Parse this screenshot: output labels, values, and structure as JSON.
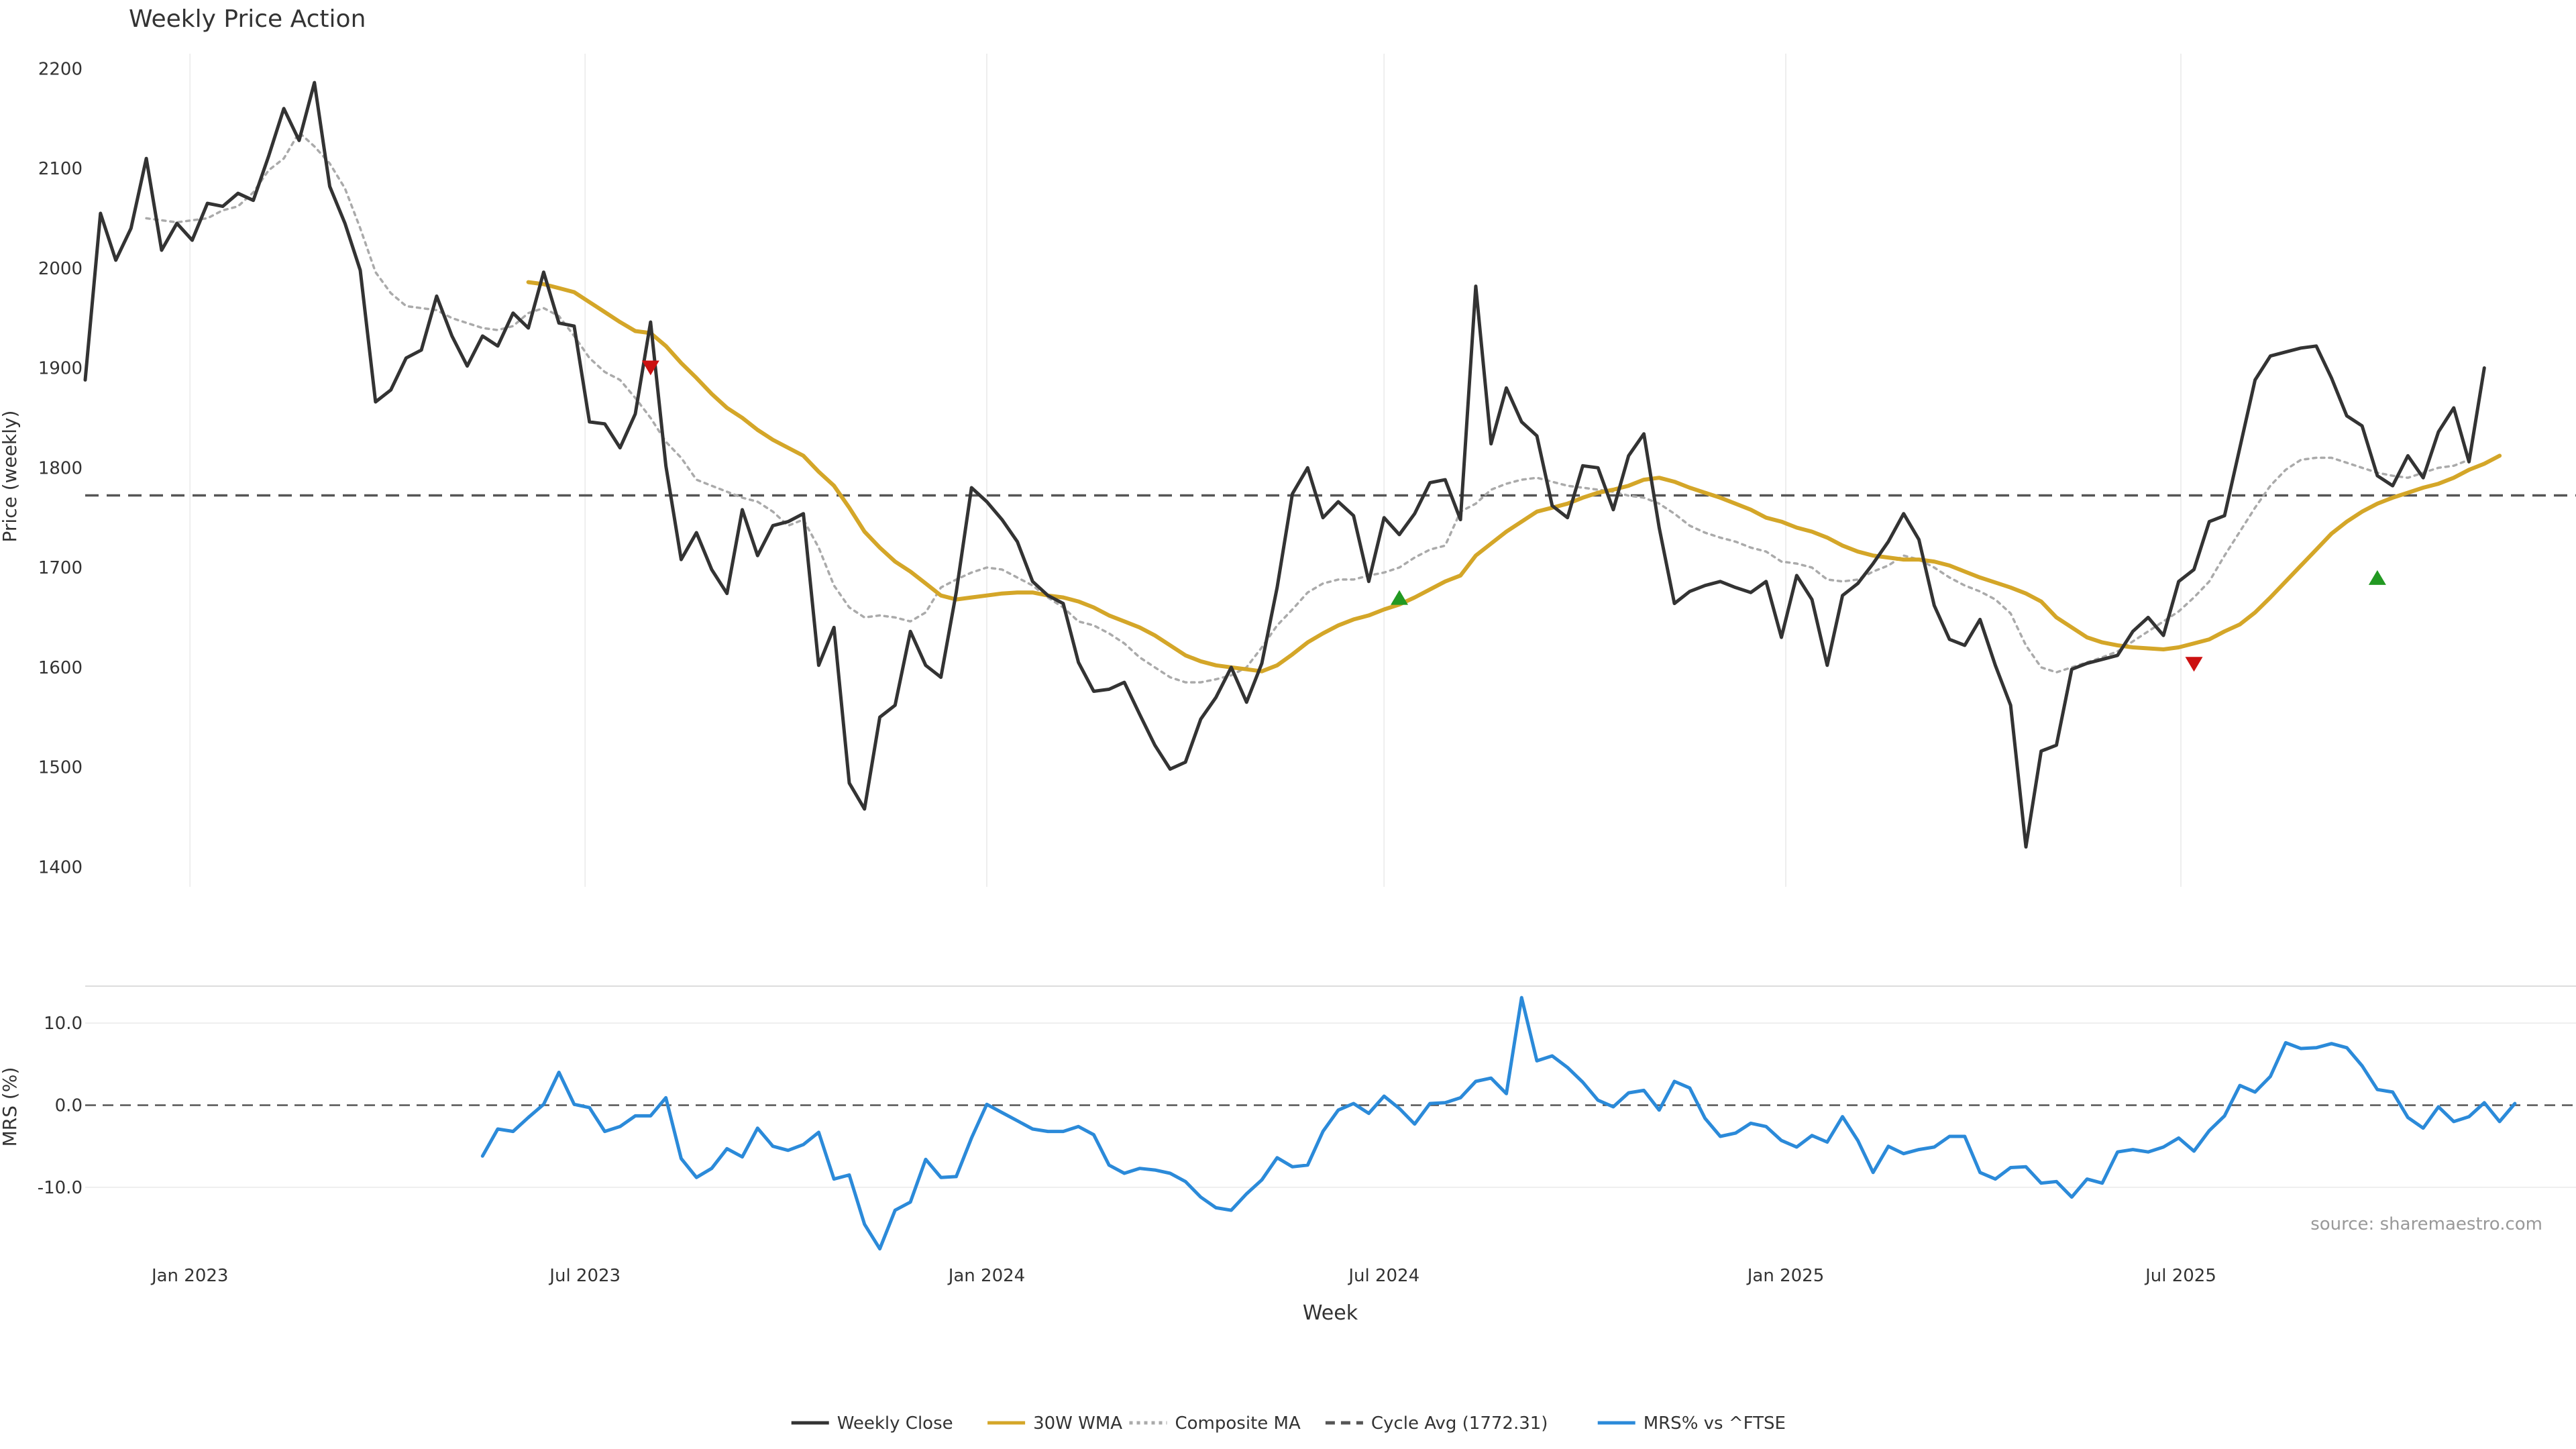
{
  "chart_data": {
    "type": "line",
    "title": "Weekly Price Action",
    "source": "source: sharemaestro.com",
    "xlabel": "Week",
    "x_start": "2022-11-14",
    "x_tick_labels": [
      {
        "label": "Jan 2023",
        "date": "2023-01-01"
      },
      {
        "label": "Jul 2023",
        "date": "2023-07-01"
      },
      {
        "label": "Jan 2024",
        "date": "2024-01-01"
      },
      {
        "label": "Jul 2024",
        "date": "2024-07-01"
      },
      {
        "label": "Jan 2025",
        "date": "2025-01-01"
      },
      {
        "label": "Jul 2025",
        "date": "2025-07-01"
      }
    ],
    "price_panel": {
      "ylabel": "Price (weekly)",
      "ylim": [
        1380,
        2215
      ],
      "yticks": [
        1400,
        1500,
        1600,
        1700,
        1800,
        1900,
        2000,
        2100,
        2200
      ],
      "series": [
        {
          "name": "Weekly Close",
          "color": "#333333",
          "style": "solid",
          "start_index": 0,
          "values": [
            1888,
            2055,
            2008,
            2040,
            2110,
            2018,
            2045,
            2028,
            2065,
            2062,
            2075,
            2068,
            2112,
            2160,
            2128,
            2186,
            2082,
            2045,
            1998,
            1866,
            1878,
            1910,
            1918,
            1972,
            1932,
            1902,
            1932,
            1922,
            1955,
            1940,
            1996,
            1945,
            1942,
            1846,
            1844,
            1820,
            1854,
            1946,
            1802,
            1708,
            1735,
            1698,
            1674,
            1758,
            1712,
            1742,
            1746,
            1754,
            1602,
            1640,
            1484,
            1458,
            1550,
            1562,
            1636,
            1602,
            1590,
            1675,
            1780,
            1766,
            1748,
            1726,
            1686,
            1672,
            1664,
            1605,
            1576,
            1578,
            1585,
            1553,
            1522,
            1498,
            1505,
            1548,
            1570,
            1600,
            1565,
            1604,
            1680,
            1774,
            1800,
            1750,
            1766,
            1752,
            1686,
            1750,
            1733,
            1754,
            1785,
            1788,
            1748,
            1982,
            1824,
            1880,
            1846,
            1832,
            1762,
            1750,
            1802,
            1800,
            1758,
            1812,
            1834,
            1740,
            1664,
            1676,
            1682,
            1686,
            1680,
            1675,
            1686,
            1630,
            1692,
            1668,
            1602,
            1672,
            1684,
            1704,
            1726,
            1754,
            1728,
            1662,
            1628,
            1622,
            1648,
            1602,
            1562,
            1420,
            1516,
            1522,
            1598,
            1604,
            1608,
            1612,
            1636,
            1650,
            1632,
            1686,
            1698,
            1746,
            1752,
            1820,
            1888,
            1912,
            1916,
            1920,
            1922,
            1890,
            1852,
            1842,
            1792,
            1782,
            1812,
            1790,
            1836,
            1860,
            1806,
            1900
          ]
        },
        {
          "name": "30W WMA",
          "color": "#d4a628",
          "style": "solid",
          "start_index": 29,
          "values": [
            1986,
            1984,
            1980,
            1976,
            1966,
            1956,
            1946,
            1937,
            1935,
            1922,
            1905,
            1890,
            1874,
            1860,
            1850,
            1838,
            1828,
            1820,
            1812,
            1796,
            1782,
            1760,
            1736,
            1720,
            1706,
            1696,
            1684,
            1672,
            1668,
            1670,
            1672,
            1674,
            1675,
            1675,
            1672,
            1670,
            1666,
            1660,
            1652,
            1646,
            1640,
            1632,
            1622,
            1612,
            1606,
            1602,
            1600,
            1598,
            1596,
            1602,
            1613,
            1625,
            1634,
            1642,
            1648,
            1652,
            1658,
            1663,
            1670,
            1678,
            1686,
            1692,
            1712,
            1724,
            1736,
            1746,
            1756,
            1760,
            1764,
            1770,
            1775,
            1778,
            1782,
            1788,
            1790,
            1786,
            1780,
            1775,
            1770,
            1764,
            1758,
            1750,
            1746,
            1740,
            1736,
            1730,
            1722,
            1716,
            1712,
            1710,
            1708,
            1708,
            1706,
            1702,
            1696,
            1690,
            1685,
            1680,
            1674,
            1666,
            1650,
            1640,
            1630,
            1625,
            1622,
            1620,
            1619,
            1618,
            1620,
            1624,
            1628,
            1636,
            1643,
            1655,
            1670,
            1686,
            1702,
            1718,
            1734,
            1746,
            1756,
            1764,
            1770,
            1775,
            1780,
            1784,
            1790,
            1798,
            1804,
            1812
          ]
        },
        {
          "name": "Composite MA",
          "color": "#aaaaaa",
          "style": "dotted",
          "start_index": 4,
          "values": [
            2050,
            2048,
            2046,
            2048,
            2050,
            2058,
            2062,
            2076,
            2098,
            2110,
            2136,
            2122,
            2105,
            2080,
            2040,
            1996,
            1975,
            1962,
            1960,
            1958,
            1950,
            1945,
            1940,
            1938,
            1942,
            1955,
            1960,
            1952,
            1932,
            1910,
            1896,
            1888,
            1870,
            1850,
            1826,
            1810,
            1788,
            1782,
            1776,
            1770,
            1766,
            1756,
            1742,
            1748,
            1720,
            1682,
            1660,
            1650,
            1652,
            1650,
            1646,
            1655,
            1680,
            1688,
            1695,
            1700,
            1698,
            1690,
            1682,
            1670,
            1660,
            1646,
            1642,
            1634,
            1624,
            1610,
            1600,
            1590,
            1585,
            1585,
            1588,
            1592,
            1600,
            1620,
            1642,
            1658,
            1675,
            1684,
            1688,
            1688,
            1692,
            1695,
            1700,
            1710,
            1718,
            1722,
            1756,
            1764,
            1778,
            1784,
            1788,
            1790,
            1786,
            1782,
            1780,
            1778,
            1776,
            1772,
            1770,
            1764,
            1754,
            1742,
            1735,
            1730,
            1726,
            1720,
            1716,
            1706,
            1704,
            1700,
            1688,
            1686,
            1688,
            1696,
            1702,
            1712,
            1708,
            1700,
            1690,
            1682,
            1676,
            1668,
            1654,
            1622,
            1600,
            1595,
            1600,
            1605,
            1610,
            1616,
            1626,
            1636,
            1646,
            1656,
            1670,
            1686,
            1712,
            1736,
            1760,
            1782,
            1798,
            1808,
            1810,
            1810,
            1805,
            1800,
            1795,
            1792,
            1790,
            1795,
            1800,
            1802,
            1808
          ]
        }
      ],
      "cycle_avg": {
        "name": "Cycle Avg (1772.31)",
        "value": 1772.31,
        "color": "#555555"
      },
      "markers": [
        {
          "type": "sell",
          "index": 37,
          "value": 1900,
          "color": "#cc1111"
        },
        {
          "type": "buy",
          "index": 86,
          "value": 1670,
          "color": "#229922"
        },
        {
          "type": "sell",
          "index": 138,
          "value": 1603,
          "color": "#cc1111"
        },
        {
          "type": "buy",
          "index": 150,
          "value": 1690,
          "color": "#229922"
        }
      ]
    },
    "mrs_panel": {
      "ylabel": "MRS (%)",
      "ylim": [
        -19,
        14.5
      ],
      "yticks": [
        10.0,
        0.0,
        -10.0
      ],
      "ytick_labels": [
        "10.0",
        "0.0",
        "-10.0"
      ],
      "zero_line": 0,
      "series": [
        {
          "name": "MRS% vs ^FTSE",
          "color": "#2b8ad9",
          "style": "solid",
          "start_index": 26,
          "values": [
            -6.2,
            -2.9,
            -3.2,
            -1.5,
            0.1,
            4.0,
            0.1,
            -0.3,
            -3.2,
            -2.6,
            -1.3,
            -1.3,
            0.9,
            -6.5,
            -8.8,
            -7.7,
            -5.3,
            -6.3,
            -2.8,
            -5.0,
            -5.5,
            -4.8,
            -3.3,
            -9.0,
            -8.5,
            -14.5,
            -17.5,
            -12.8,
            -11.8,
            -6.6,
            -8.8,
            -8.7,
            -4.0,
            0.1,
            -0.9,
            -1.9,
            -2.9,
            -3.2,
            -3.2,
            -2.6,
            -3.6,
            -7.3,
            -8.3,
            -7.7,
            -7.9,
            -8.3,
            -9.3,
            -11.2,
            -12.5,
            -12.8,
            -10.8,
            -9.1,
            -6.4,
            -7.5,
            -7.3,
            -3.2,
            -0.6,
            0.2,
            -1.0,
            1.1,
            -0.4,
            -2.3,
            0.2,
            0.3,
            0.9,
            2.9,
            3.3,
            1.4,
            13.1,
            5.4,
            6.0,
            4.6,
            2.8,
            0.6,
            -0.2,
            1.5,
            1.8,
            -0.6,
            2.9,
            2.1,
            -1.6,
            -3.8,
            -3.4,
            -2.2,
            -2.6,
            -4.3,
            -5.1,
            -3.7,
            -4.5,
            -1.4,
            -4.3,
            -8.2,
            -5.0,
            -5.9,
            -5.4,
            -5.1,
            -3.8,
            -3.8,
            -8.2,
            -9.0,
            -7.6,
            -7.5,
            -9.5,
            -9.3,
            -11.2,
            -9.0,
            -9.5,
            -5.7,
            -5.4,
            -5.7,
            -5.1,
            -4.0,
            -5.6,
            -3.1,
            -1.3,
            2.4,
            1.6,
            3.5,
            7.6,
            6.9,
            7.0,
            7.5,
            7.0,
            4.8,
            1.9,
            1.6,
            -1.5,
            -2.8,
            -0.2,
            -2.0,
            -1.4,
            0.3,
            -2.0,
            0.2
          ]
        }
      ]
    },
    "legend": {
      "placement": "bottom-center",
      "entries": [
        {
          "label": "Weekly Close",
          "color": "#333333",
          "style": "solid"
        },
        {
          "label": "30W WMA",
          "color": "#d4a628",
          "style": "solid"
        },
        {
          "label": "Composite MA",
          "color": "#aaaaaa",
          "style": "dotted"
        },
        {
          "label": "Cycle Avg (1772.31)",
          "color": "#555555",
          "style": "dashed"
        },
        {
          "label": "MRS% vs ^FTSE",
          "color": "#2b8ad9",
          "style": "solid"
        }
      ]
    },
    "grid": {
      "vertical": true,
      "horizontal_mrs": true
    }
  }
}
